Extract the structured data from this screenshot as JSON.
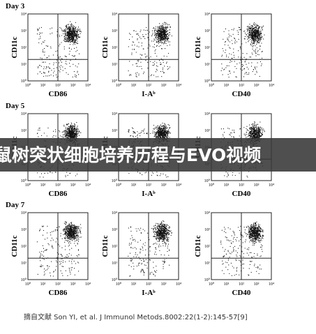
{
  "rows": [
    {
      "day": "Day 3",
      "panels": [
        {
          "y_label": "CD11c",
          "x_label": "CD86"
        },
        {
          "y_label": "CD11c",
          "x_label": "I-Aᵇ"
        },
        {
          "y_label": "CD11c",
          "x_label": "CD40"
        }
      ]
    },
    {
      "day": "Day 5",
      "panels": [
        {
          "y_label": "CD11c",
          "x_label": "CD86"
        },
        {
          "y_label": "CD11c",
          "x_label": "I-Aᵇ"
        },
        {
          "y_label": "CD11c",
          "x_label": "CD40"
        }
      ]
    },
    {
      "day": "Day 7",
      "panels": [
        {
          "y_label": "CD11c",
          "x_label": "CD86"
        },
        {
          "y_label": "CD11c",
          "x_label": "I-Aᵇ"
        },
        {
          "y_label": "CD11c",
          "x_label": "CD40"
        }
      ]
    }
  ],
  "tick_labels": [
    "10⁰",
    "10¹",
    "10²",
    "10³",
    "10⁴"
  ],
  "banner": "鼠树突状细胞培养历程与EVO视频",
  "citation": "摘自文献 Son YI, et al. J Immunol Metods.8002:22(1-2):145-57[9]"
}
